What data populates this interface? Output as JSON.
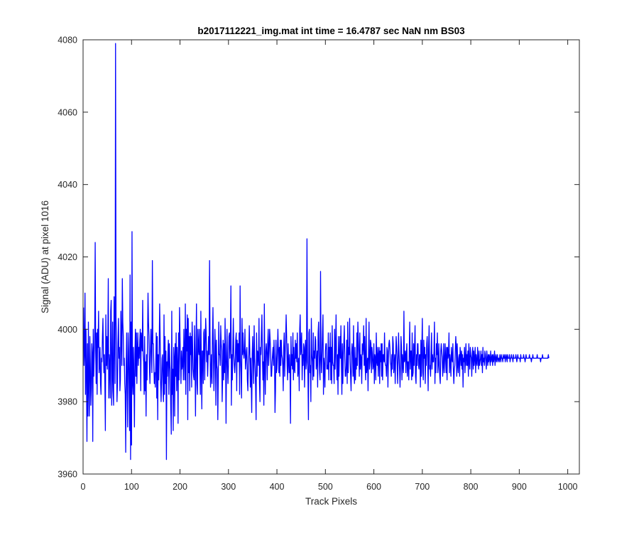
{
  "chart_data": {
    "type": "line",
    "title": "b2017112221_img.mat int time = 16.4787 sec  NaN nm BS03",
    "xlabel": "Track Pixels",
    "ylabel": "Signal (ADU) at pixel 1016",
    "xlim": [
      0,
      1024
    ],
    "ylim": [
      3960,
      4080
    ],
    "xticks": [
      0,
      100,
      200,
      300,
      400,
      500,
      600,
      700,
      800,
      900,
      1000
    ],
    "yticks": [
      3960,
      3980,
      4000,
      4020,
      4040,
      4060,
      4080
    ],
    "grid": false,
    "box": true,
    "series": [
      {
        "color": "#0000ff",
        "x_start": 1,
        "x_step": 1,
        "y": [
          4006,
          3990,
          3994,
          4010,
          3982,
          4000,
          3988,
          3969,
          3996,
          3976,
          4002,
          3984,
          3976,
          3998,
          3990,
          3979,
          3984,
          3996,
          3993,
          3969,
          4000,
          3987,
          3993,
          3999,
          4024,
          3994,
          3985,
          3999,
          3982,
          4000,
          3995,
          4005,
          3988,
          3990,
          3995,
          3985,
          3982,
          3992,
          3991,
          3998,
          4003,
          3993,
          3988,
          3993,
          3985,
          3972,
          4004,
          3990,
          3998,
          3989,
          3996,
          4014,
          3981,
          3993,
          3990,
          3981,
          4005,
          4008,
          3979,
          3987,
          4002,
          3983,
          3979,
          4009,
          3999,
          3985,
          4079,
          4003,
          3995,
          3980,
          3985,
          3996,
          4003,
          3992,
          3995,
          3983,
          3986,
          4005,
          3997,
          3990,
          4014,
          4002,
          3998,
          3990,
          3992,
          3985,
          3982,
          3966,
          3990,
          3999,
          3983,
          3973,
          3999,
          3994,
          3984,
          3972,
          4015,
          3964,
          4002,
          3968,
          4027,
          3985,
          3982,
          3995,
          3986,
          3973,
          3993,
          4000,
          3987,
          3999,
          3985,
          3994,
          3999,
          3990,
          3995,
          3992,
          3997,
          4000,
          3983,
          3999,
          3997,
          3994,
          4008,
          3993,
          3991,
          3982,
          3998,
          3983,
          3991,
          3976,
          3993,
          3986,
          3997,
          4010,
          4002,
          3998,
          3989,
          3985,
          3994,
          4000,
          3993,
          3988,
          4019,
          3996,
          3996,
          3990,
          3985,
          3988,
          3984,
          3990,
          3999,
          3981,
          3998,
          3975,
          3993,
          3986,
          3994,
          4007,
          3998,
          3985,
          3980,
          3986,
          3992,
          3993,
          3983,
          3980,
          4004,
          3982,
          3998,
          3985,
          3994,
          3964,
          3991,
          3987,
          3993,
          3997,
          3982,
          3996,
          3991,
          3988,
          3978,
          3971,
          4005,
          3982,
          3989,
          3972,
          3995,
          3992,
          3976,
          3996,
          3987,
          3999,
          3983,
          3995,
          3990,
          3974,
          3999,
          3986,
          4006,
          3998,
          3991,
          3985,
          3994,
          3989,
          3990,
          3995,
          3986,
          4000,
          3993,
          3986,
          4007,
          3982,
          4000,
          3994,
          4004,
          3975,
          4003,
          3988,
          3998,
          3983,
          3999,
          3993,
          3998,
          3984,
          4002,
          3996,
          3989,
          3987,
          3986,
          4001,
          3991,
          3976,
          3995,
          4007,
          3985,
          3982,
          4000,
          3995,
          3993,
          4000,
          3990,
          3982,
          4005,
          3990,
          3978,
          3994,
          3994,
          3985,
          3999,
          4000,
          3986,
          3995,
          4003,
          3999,
          3991,
          3994,
          3987,
          3992,
          3998,
          3993,
          4019,
          3998,
          3984,
          3988,
          3993,
          3985,
          3998,
          4006,
          3993,
          3983,
          3990,
          4000,
          3995,
          3979,
          3997,
          3990,
          3989,
          3975,
          3987,
          4002,
          3993,
          3993,
          3990,
          4001,
          3996,
          3994,
          3980,
          3987,
          3997,
          3986,
          3996,
          3988,
          4003,
          3993,
          3974,
          3991,
          4000,
          3990,
          3985,
          3990,
          3998,
          3999,
          3992,
          3997,
          4012,
          3979,
          3993,
          3986,
          3995,
          4003,
          3993,
          3990,
          3988,
          3991,
          3997,
          3999,
          3983,
          3997,
          3991,
          3996,
          3991,
          3999,
          3982,
          4012,
          3992,
          3988,
          3981,
          4003,
          3993,
          3999,
          3994,
          3992,
          3994,
          4000,
          3989,
          3991,
          3994,
          3995,
          3986,
          3983,
          3990,
          3993,
          4001,
          3994,
          3984,
          3992,
          3985,
          3977,
          3993,
          3998,
          3991,
          3985,
          4001,
          3992,
          3989,
          3984,
          3975,
          3999,
          3987,
          3994,
          3993,
          3990,
          4003,
          3985,
          3980,
          3995,
          3993,
          3999,
          4004,
          3993,
          3986,
          3991,
          3979,
          4007,
          3990,
          3982,
          3994,
          3996,
          3993,
          3986,
          3996,
          4000,
          3990,
          3994,
          4000,
          3997,
          3993,
          3987,
          3987,
          3991,
          3993,
          3995,
          3990,
          3997,
          3992,
          3977,
          3983,
          3997,
          3988,
          3989,
          3994,
          4000,
          3994,
          3988,
          3995,
          3987,
          3997,
          3990,
          3997,
          3993,
          3992,
          3990,
          3983,
          3995,
          3999,
          3987,
          3993,
          3997,
          4004,
          3998,
          3990,
          3986,
          3996,
          3991,
          3988,
          3993,
          3988,
          3974,
          3998,
          3990,
          3993,
          3989,
          3999,
          3986,
          3995,
          3989,
          3988,
          3997,
          3992,
          3996,
          3991,
          3999,
          3987,
          3989,
          3992,
          3983,
          4000,
          4004,
          3993,
          3995,
          3999,
          3986,
          3993,
          3990,
          3996,
          3995,
          3984,
          3994,
          3997,
          3989,
          3991,
          4025,
          3993,
          3987,
          3975,
          3999,
          4000,
          3988,
          3990,
          3980,
          4003,
          3993,
          3991,
          3986,
          3999,
          3987,
          3994,
          3992,
          3998,
          3997,
          3989,
          3991,
          3994,
          3984,
          3999,
          4002,
          3993,
          3988,
          3986,
          4016,
          3992,
          3988,
          3993,
          3999,
          4004,
          3982,
          3992,
          3990,
          3984,
          3994,
          3996,
          3996,
          3989,
          3990,
          3989,
          3999,
          3986,
          3995,
          3991,
          3999,
          3986,
          3995,
          3985,
          4001,
          3991,
          3990,
          3990,
          3985,
          4000,
          3989,
          3995,
          4004,
          3992,
          3986,
          3993,
          3982,
          3998,
          3987,
          3993,
          3998,
          3992,
          4001,
          3991,
          3982,
          3996,
          3985,
          3993,
          3996,
          4001,
          3992,
          3987,
          3987,
          3990,
          3997,
          3985,
          4002,
          3988,
          3995,
          3993,
          4003,
          3991,
          3987,
          3983,
          3993,
          3996,
          3994,
          3987,
          4001,
          3988,
          3985,
          3995,
          3986,
          3992,
          3989,
          3999,
          3990,
          4002,
          3997,
          3993,
          3987,
          3999,
          3989,
          3993,
          3992,
          3985,
          3996,
          3993,
          3995,
          4001,
          3990,
          3998,
          3990,
          3986,
          4003,
          3988,
          3990,
          3992,
          3983,
          3993,
          4002,
          3989,
          3991,
          3997,
          3996,
          3988,
          3995,
          3993,
          3989,
          3990,
          3996,
          3985,
          3993,
          3992,
          3986,
          3999,
          3991,
          3990,
          3995,
          3987,
          3993,
          3995,
          3985,
          3994,
          3991,
          3996,
          3987,
          3996,
          3986,
          3993,
          3993,
          3991,
          3999,
          3991,
          3990,
          3990,
          3987,
          3995,
          3994,
          3984,
          3992,
          3996,
          3997,
          3995,
          3991,
          3990,
          3987,
          3993,
          3989,
          3998,
          3996,
          3988,
          3990,
          3993,
          3985,
          3992,
          3998,
          3995,
          3991,
          3985,
          3991,
          3999,
          3993,
          3989,
          3984,
          3990,
          3998,
          3995,
          3986,
          3993,
          3990,
          3988,
          4005,
          3991,
          3992,
          3994,
          3988,
          3993,
          3996,
          3987,
          3991,
          3991,
          3986,
          3994,
          4002,
          3989,
          3994,
          3994,
          3986,
          3999,
          3987,
          3988,
          3996,
          3990,
          3995,
          4001,
          3987,
          3985,
          3993,
          3990,
          3996,
          3996,
          3990,
          3989,
          3993,
          3993,
          3984,
          3997,
          3987,
          3995,
          4003,
          3988,
          3986,
          3997,
          3992,
          3995,
          3985,
          3993,
          3990,
          3996,
          3998,
          3992,
          3983,
          3995,
          4001,
          3989,
          3990,
          3987,
          3993,
          3999,
          3989,
          3993,
          3991,
          3991,
          3994,
          4002,
          3985,
          3992,
          3988,
          3996,
          3993,
          3999,
          3988,
          3990,
          3996,
          3991,
          3987,
          3985,
          3994,
          3996,
          3994,
          3992,
          3987,
          3990,
          3996,
          3988,
          3991,
          3996,
          3992,
          3988,
          3995,
          3986,
          3995,
          3992,
          3993,
          3999,
          3988,
          3993,
          3991,
          3987,
          3995,
          3992,
          3991,
          3996,
          3989,
          3985,
          3989,
          3990,
          3994,
          3998,
          3995,
          3987,
          3996,
          3990,
          3988,
          3992,
          3993,
          3987,
          3995,
          3993,
          3990,
          3994,
          3989,
          3993,
          3984,
          3992,
          3991,
          3995,
          3988,
          3992,
          3996,
          3990,
          3993,
          3990,
          3994,
          3987,
          3996,
          3991,
          3989,
          3995,
          3993,
          3992,
          3987,
          3993,
          3995,
          3989,
          3994,
          3990,
          3992,
          3995,
          3988,
          3993,
          3991,
          3990,
          3995,
          3992,
          3989,
          3994,
          3990,
          3991,
          3992,
          3994,
          3990,
          3993,
          3988,
          3995,
          3991,
          3992,
          3990,
          3994,
          3993,
          3991,
          3989,
          3994,
          3992,
          3990,
          3993,
          3991,
          3993,
          3992,
          3990,
          3994,
          3991,
          3992,
          3993,
          3990,
          3993,
          3991,
          3992,
          3994,
          3990,
          3992,
          3993,
          3991,
          3992,
          3993,
          3991,
          3992,
          3992,
          3991,
          3993,
          3992,
          3991,
          3993,
          3992,
          3992,
          3991,
          3993,
          3992,
          3992,
          3993,
          3991,
          3992,
          3993,
          3992,
          3991,
          3993,
          3992,
          3992,
          3992,
          3993,
          3991,
          3992,
          3992,
          3993,
          3992,
          3992,
          3991,
          3993,
          3992,
          3992,
          3992,
          3992,
          3993,
          3992,
          3991,
          3992,
          3993,
          3992,
          3992,
          3992,
          3992,
          3991,
          3993,
          3992,
          3992,
          3992,
          3992,
          3992,
          3993,
          3992,
          3992,
          3991,
          3992,
          3993,
          3992,
          3992,
          3992,
          3992,
          3992,
          3992,
          3993,
          3992,
          3992,
          3992,
          3991,
          3992,
          3992,
          3993,
          3992,
          3992,
          3992,
          3992,
          3992,
          3992,
          3992,
          3992,
          3993,
          3992,
          3992,
          3992,
          3992,
          3992,
          3992,
          3991,
          3992,
          3992,
          3992,
          3993,
          3992,
          3992,
          3992,
          3992,
          3992,
          3992,
          3992,
          3992,
          3992,
          3992,
          3992,
          3993,
          3992
        ]
      }
    ]
  }
}
